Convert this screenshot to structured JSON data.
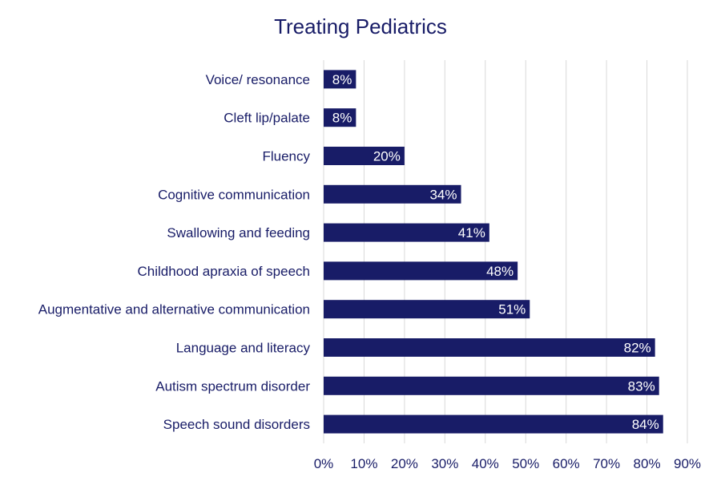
{
  "chart_data": {
    "type": "bar",
    "orientation": "horizontal",
    "title": "Treating Pediatrics",
    "xlabel": "",
    "ylabel": "",
    "categories": [
      "Voice/ resonance",
      "Cleft lip/palate",
      "Fluency",
      "Cognitive communication",
      "Swallowing and feeding",
      "Childhood apraxia of speech",
      "Augmentative and alternative communication",
      "Language and literacy",
      "Autism spectrum disorder",
      "Speech sound disorders"
    ],
    "values": [
      8,
      8,
      20,
      34,
      41,
      48,
      51,
      82,
      83,
      84
    ],
    "data_labels": [
      "8%",
      "8%",
      "20%",
      "34%",
      "41%",
      "48%",
      "51%",
      "82%",
      "83%",
      "84%"
    ],
    "xlim": [
      0,
      90
    ],
    "x_ticks": [
      "0%",
      "10%",
      "20%",
      "30%",
      "40%",
      "50%",
      "60%",
      "70%",
      "80%",
      "90%"
    ],
    "grid": "vertical",
    "legend": "none",
    "colors": {
      "bar": "#181c67",
      "text": "#181c67",
      "grid": "#d9d9d9",
      "label": "#ffffff"
    }
  }
}
